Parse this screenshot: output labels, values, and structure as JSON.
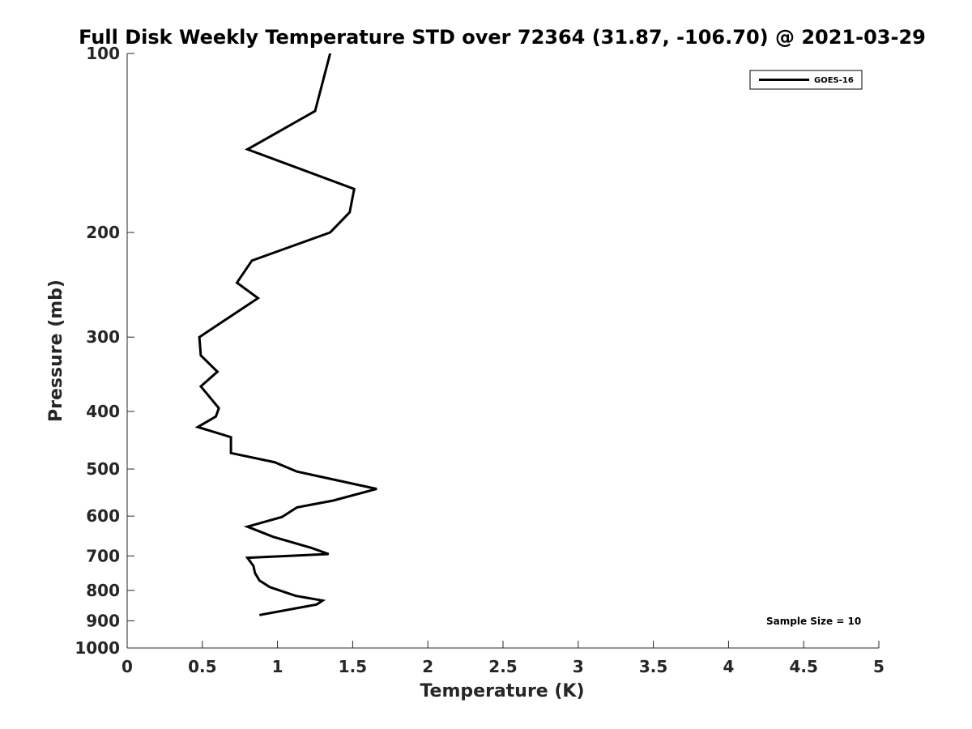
{
  "chart_data": {
    "type": "line",
    "title": "Full Disk Weekly Temperature STD over 72364 (31.87, -106.70) @ 2021-03-29",
    "xlabel": "Temperature (K)",
    "ylabel": "Pressure (mb)",
    "xlim": [
      0,
      5
    ],
    "ylim": [
      100,
      1000
    ],
    "y_scale": "log",
    "y_reversed": true,
    "grid": false,
    "legend_position": "top-right",
    "x_ticks": [
      "0",
      "0.5",
      "1",
      "1.5",
      "2",
      "2.5",
      "3",
      "3.5",
      "4",
      "4.5",
      "5"
    ],
    "y_ticks": [
      "100",
      "200",
      "300",
      "400",
      "500",
      "600",
      "700",
      "800",
      "900",
      "1000"
    ],
    "series": [
      {
        "name": "GOES-16",
        "color": "#000000",
        "points": [
          [
            1.35,
            100
          ],
          [
            1.25,
            125
          ],
          [
            0.8,
            145
          ],
          [
            1.51,
            169
          ],
          [
            1.48,
            185
          ],
          [
            1.35,
            200
          ],
          [
            0.83,
            223
          ],
          [
            0.73,
            243
          ],
          [
            0.87,
            258
          ],
          [
            0.48,
            300
          ],
          [
            0.49,
            322
          ],
          [
            0.6,
            343
          ],
          [
            0.49,
            363
          ],
          [
            0.61,
            395
          ],
          [
            0.59,
            408
          ],
          [
            0.47,
            425
          ],
          [
            0.69,
            442
          ],
          [
            0.69,
            470
          ],
          [
            0.98,
            487
          ],
          [
            1.13,
            505
          ],
          [
            1.66,
            540
          ],
          [
            1.37,
            565
          ],
          [
            1.13,
            580
          ],
          [
            1.03,
            602
          ],
          [
            0.8,
            625
          ],
          [
            0.97,
            650
          ],
          [
            1.22,
            678
          ],
          [
            1.34,
            695
          ],
          [
            0.8,
            705
          ],
          [
            0.84,
            728
          ],
          [
            0.85,
            748
          ],
          [
            0.88,
            770
          ],
          [
            0.95,
            790
          ],
          [
            1.12,
            817
          ],
          [
            1.3,
            832
          ],
          [
            1.26,
            845
          ],
          [
            0.88,
            880
          ]
        ]
      }
    ]
  },
  "annotations": {
    "sample_size": "Sample Size = 10"
  }
}
